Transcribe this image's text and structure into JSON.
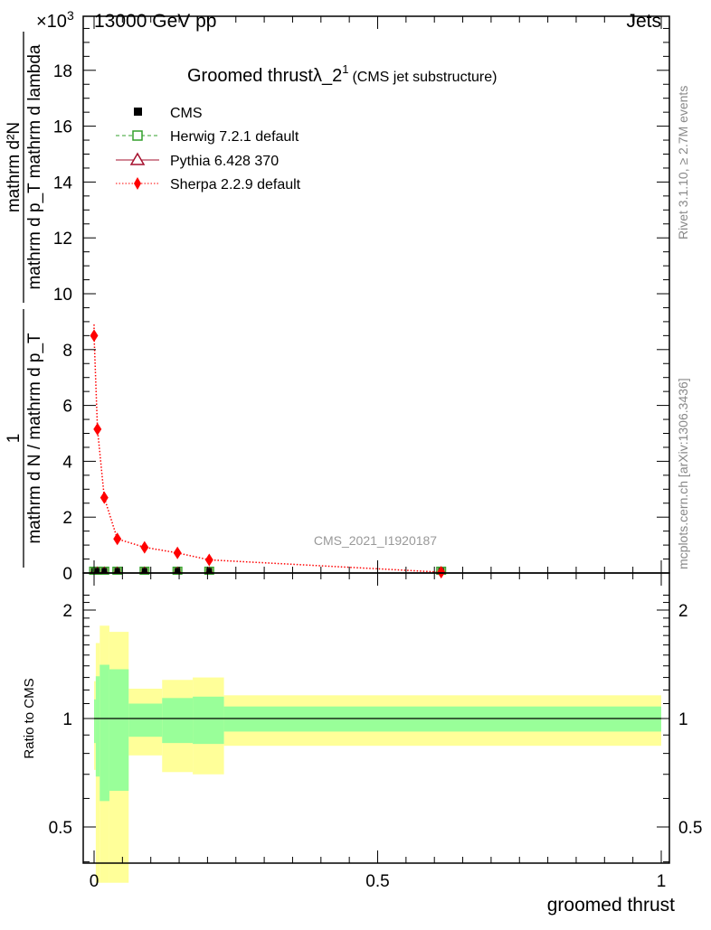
{
  "header": {
    "left": "13000 GeV pp",
    "right": "Jets",
    "exponent": "×10",
    "exponent_power": "3"
  },
  "side_labels": {
    "rivet": "Rivet 3.1.10, ≥ 2.7M events",
    "mcplots": "mcplots.cern.ch [arXiv:1306.3436]"
  },
  "watermark": "CMS_2021_I1920187",
  "colors": {
    "herwig": "#33a02c",
    "pythia": "#a50f2d",
    "sherpa": "#ff0000",
    "band_yellow": "#ffff99",
    "band_green": "#99ff99"
  },
  "chart_data": [
    {
      "type": "scatter",
      "title": "Groomed thrustλ_2",
      "title_sup": "1",
      "subtitle": "(CMS jet substructure)",
      "ylabel_upper_num": "mathrm d²N",
      "ylabel_upper_den": "mathrm d p_T mathrm d lambda",
      "ylabel_lower_num": "1",
      "ylabel_lower_den": "mathrm d N / mathrm d p_T",
      "y_scale_factor": "x10^3",
      "xlim": [
        0,
        1
      ],
      "ylim": [
        0,
        19.5
      ],
      "yticks": [
        "0",
        "2",
        "4",
        "6",
        "8",
        "10",
        "12",
        "14",
        "16",
        "18"
      ],
      "legend_position": "top-left",
      "legend": [
        "CMS",
        "Herwig 7.2.1 default",
        "Pythia 6.428 370",
        "Sherpa 2.2.9 default"
      ],
      "x": [
        0.0,
        0.006,
        0.018,
        0.041,
        0.089,
        0.147,
        0.203,
        0.612
      ],
      "series": [
        {
          "name": "CMS",
          "values": [
            0.05,
            0.05,
            0.05,
            0.05,
            0.05,
            0.05,
            0.05,
            0.05
          ]
        },
        {
          "name": "Herwig 7.2.1 default",
          "values": [
            0.05,
            0.05,
            0.05,
            0.05,
            0.05,
            0.05,
            0.05,
            0.05
          ]
        },
        {
          "name": "Pythia 6.428 370",
          "values": [
            0.05,
            0.05,
            0.05,
            0.05,
            0.05,
            0.05,
            0.05,
            0.05
          ]
        },
        {
          "name": "Sherpa 2.2.9 default",
          "values": [
            8.5,
            5.15,
            2.7,
            1.22,
            0.92,
            0.72,
            0.47,
            0.03
          ],
          "curve_start": 8.9
        }
      ]
    },
    {
      "type": "area",
      "ylabel": "Ratio to CMS",
      "xlabel": "groomed thrust",
      "xlim": [
        0,
        1
      ],
      "ylim": [
        0.35,
        2.3
      ],
      "yscale": "log",
      "yticks": [
        "0.5",
        "1",
        "2"
      ],
      "xticks": [
        "0",
        "0.5",
        "1"
      ],
      "bin_edges": [
        0,
        0.003,
        0.01,
        0.027,
        0.061,
        0.12,
        0.174,
        0.229,
        1.0
      ],
      "yellow_band": {
        "upper": [
          1.27,
          1.62,
          1.81,
          1.74,
          1.21,
          1.28,
          1.3,
          1.16
        ],
        "lower": [
          0.72,
          0.35,
          0.35,
          0.35,
          0.79,
          0.71,
          0.7,
          0.84
        ]
      },
      "green_band": {
        "upper": [
          1.13,
          1.31,
          1.41,
          1.37,
          1.1,
          1.14,
          1.15,
          1.08
        ],
        "lower": [
          0.855,
          0.69,
          0.59,
          0.63,
          0.89,
          0.855,
          0.85,
          0.92
        ]
      },
      "reference_line": 1
    }
  ]
}
